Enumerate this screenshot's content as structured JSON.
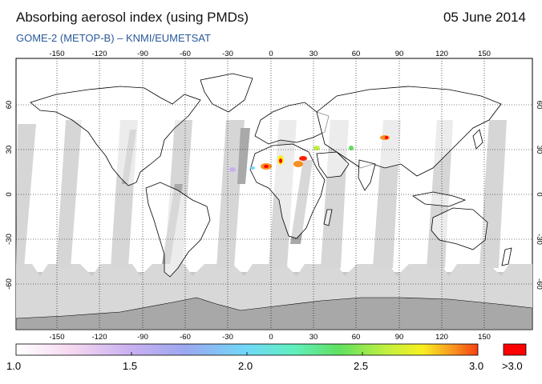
{
  "header": {
    "title": "Absorbing aerosol index (using PMDs)",
    "date": "05 June 2014",
    "subtitle": "GOME-2 (METOP-B)  –  KNMI/EUMETSAT"
  },
  "map": {
    "lon_ticks": [
      "-150",
      "-120",
      "-90",
      "-60",
      "-30",
      "0",
      "30",
      "60",
      "90",
      "120",
      "150"
    ],
    "lat_ticks_left": [
      "60",
      "30",
      "0",
      "-30",
      "-60"
    ],
    "lat_ticks_right": [
      "60",
      "30",
      "0",
      "-30",
      "-60"
    ],
    "colors": {
      "land_outline": "#000000",
      "no_data_swath": "#d9d9d9",
      "dark_swath": "#a9a9a9",
      "polar_band": "#c8c8c8"
    }
  },
  "colorbar": {
    "labels": [
      "1.0",
      "1.5",
      "2.0",
      "2.5",
      "3.0"
    ],
    "overflow_label": ">3.0",
    "overflow_color": "#ff0000",
    "gradient": [
      "#ffffff",
      "#f6d8f0",
      "#c8b0f0",
      "#9aa8f0",
      "#70d8f8",
      "#60f0c0",
      "#60e060",
      "#c0f040",
      "#f8f020",
      "#f89020",
      "#f84010"
    ]
  }
}
